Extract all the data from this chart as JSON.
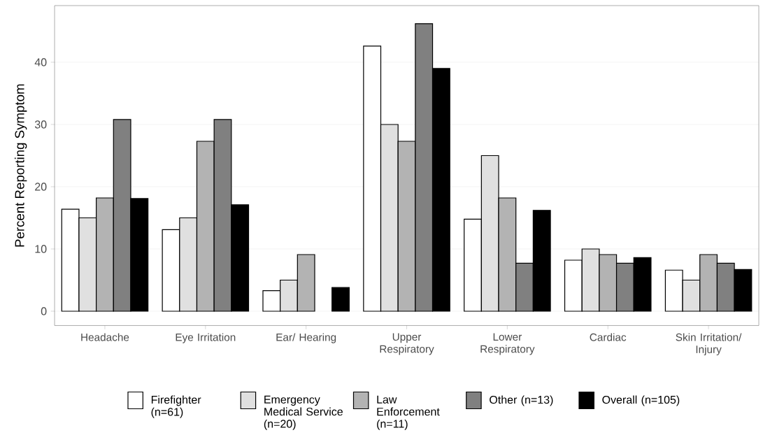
{
  "chart_data": {
    "type": "bar",
    "ylabel": "Percent Reporting Symptom",
    "categories": [
      "Headache",
      "Eye Irritation",
      "Ear/ Hearing",
      "Upper Respiratory",
      "Lower Respiratory",
      "Cardiac",
      "Skin Irritation/ Injury"
    ],
    "series": [
      {
        "name": "Firefighter (n=61)",
        "color": "#ffffff",
        "values": [
          16.4,
          13.1,
          3.3,
          42.6,
          14.8,
          8.2,
          6.6
        ]
      },
      {
        "name": "Emergency Medical Service (n=20)",
        "color": "#e0e0e0",
        "values": [
          15,
          15,
          5,
          30,
          25,
          10,
          5
        ]
      },
      {
        "name": "Law Enforcement (n=11)",
        "color": "#b3b3b3",
        "values": [
          18.2,
          27.3,
          9.1,
          27.3,
          18.2,
          9.1,
          9.1
        ]
      },
      {
        "name": "Other (n=13)",
        "color": "#808080",
        "values": [
          30.8,
          30.8,
          null,
          46.2,
          7.7,
          7.7,
          7.7
        ]
      },
      {
        "name": "Overall (n=105)",
        "color": "#000000",
        "values": [
          18.1,
          17.1,
          3.8,
          39.0,
          16.2,
          8.6,
          6.7
        ]
      }
    ],
    "ylim": [
      -2.3,
      49.1
    ],
    "yticks": [
      0,
      10,
      20,
      30,
      40
    ],
    "grid": "y",
    "legend": "bottom"
  }
}
